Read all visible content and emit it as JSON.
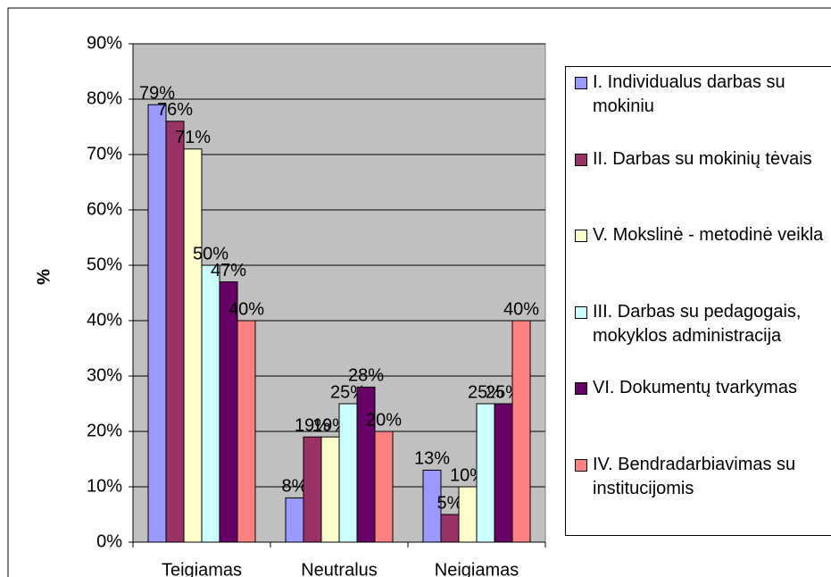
{
  "chart_data": {
    "type": "bar",
    "y_label": "%",
    "categories": [
      "Teigiamas",
      "Neutralus",
      "Neigiamas"
    ],
    "series": [
      {
        "name": "I. Individualus darbas su mokiniu",
        "color": "#9999ff",
        "values": [
          79,
          8,
          13
        ],
        "value_labels": [
          "79%",
          "8%",
          "13%"
        ]
      },
      {
        "name": "II. Darbas su mokinių tėvais",
        "color": "#993366",
        "values": [
          76,
          19,
          5
        ],
        "value_labels": [
          "76%",
          "19%",
          "5%"
        ]
      },
      {
        "name": "V. Mokslinė - metodinė veikla",
        "color": "#ffffcc",
        "values": [
          71,
          19,
          10
        ],
        "value_labels": [
          "71%",
          "19%",
          "10%"
        ]
      },
      {
        "name": "III. Darbas su pedagogais, mokyklos administracija",
        "color": "#ccffff",
        "values": [
          50,
          25,
          25
        ],
        "value_labels": [
          "50%",
          "25%",
          "25%"
        ]
      },
      {
        "name": "VI. Dokumentų tvarkymas",
        "color": "#660066",
        "values": [
          47,
          28,
          25
        ],
        "value_labels": [
          "47%",
          "28%",
          "25%"
        ]
      },
      {
        "name": "IV. Bendradarbiavimas su institucijomis",
        "color": "#ff8080",
        "values": [
          40,
          20,
          40
        ],
        "value_labels": [
          "40%",
          "20%",
          "40%"
        ]
      }
    ],
    "ylim": [
      0,
      90
    ],
    "yticks": [
      {
        "value": 0,
        "label": "0%"
      },
      {
        "value": 10,
        "label": "10%"
      },
      {
        "value": 20,
        "label": "20%"
      },
      {
        "value": 30,
        "label": "30%"
      },
      {
        "value": 40,
        "label": "40%"
      },
      {
        "value": 50,
        "label": "50%"
      },
      {
        "value": 60,
        "label": "60%"
      },
      {
        "value": 70,
        "label": "70%"
      },
      {
        "value": 80,
        "label": "80%"
      },
      {
        "value": 90,
        "label": "90%"
      }
    ],
    "grid": true,
    "legend": "right"
  }
}
